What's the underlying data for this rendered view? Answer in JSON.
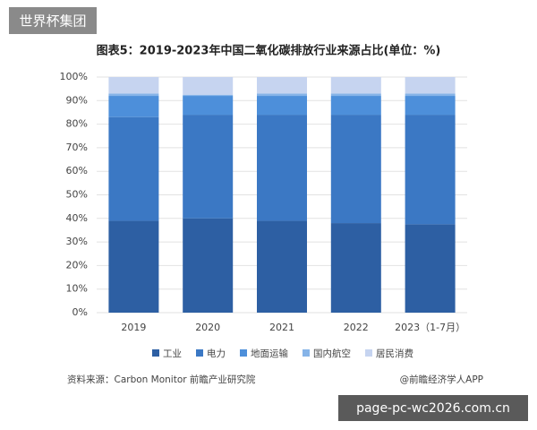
{
  "watermark": "世界杯集团",
  "source": "资料来源：Carbon Monitor 前瞻产业研究院",
  "credit": "@前瞻经济学人APP",
  "url": "page-pc-wc2026.com.cn",
  "chart_data": {
    "type": "stacked-bar",
    "title": "图表5：2019-2023年中国二氧化碳排放行业来源占比(单位：%)",
    "categories": [
      "2019",
      "2020",
      "2021",
      "2022",
      "2023（1-7月）"
    ],
    "series": [
      {
        "name": "工业",
        "color": "#2d5fa3",
        "values": [
          39,
          40,
          39,
          38,
          37.5
        ]
      },
      {
        "name": "电力",
        "color": "#3b78c4",
        "values": [
          44,
          44,
          45,
          46,
          46.5
        ]
      },
      {
        "name": "地面运输",
        "color": "#4d8fda",
        "values": [
          9,
          8,
          8,
          8,
          8
        ]
      },
      {
        "name": "国内航空",
        "color": "#86b4e8",
        "values": [
          1,
          0.5,
          1,
          1,
          1
        ]
      },
      {
        "name": "居民消费",
        "color": "#c6d4f0",
        "values": [
          7,
          7.5,
          7,
          7,
          7
        ]
      }
    ],
    "ylim": [
      0,
      100
    ],
    "yticks": [
      {
        "value": 0,
        "label": "0%"
      },
      {
        "value": 10,
        "label": "10%"
      },
      {
        "value": 20,
        "label": "20%"
      },
      {
        "value": 30,
        "label": "30%"
      },
      {
        "value": 40,
        "label": "40%"
      },
      {
        "value": 50,
        "label": "50%"
      },
      {
        "value": 60,
        "label": "60%"
      },
      {
        "value": 70,
        "label": "70%"
      },
      {
        "value": 80,
        "label": "80%"
      },
      {
        "value": 90,
        "label": "90%"
      },
      {
        "value": 100,
        "label": "100%"
      }
    ],
    "grid": true
  }
}
